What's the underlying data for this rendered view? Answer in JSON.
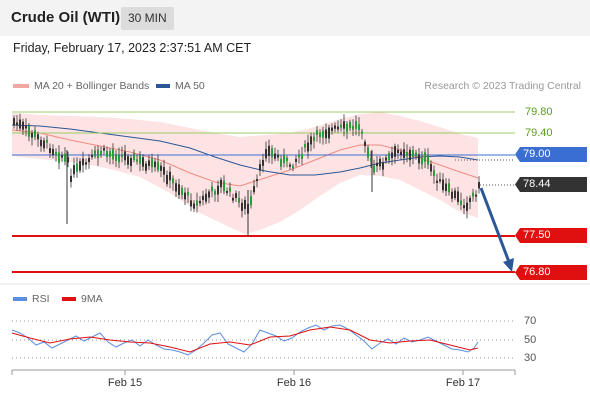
{
  "header": {
    "title": "Crude Oil (WTI)",
    "timeframe": "30 MIN"
  },
  "datetime": "Friday, February 17, 2023 2:37:51 AM CET",
  "legend": {
    "ma20_label": "MA 20 + Bollinger Bands",
    "ma20_color": "#f28b82",
    "ma50_label": "MA 50",
    "ma50_color": "#2b5797"
  },
  "credit": "Research © 2023 Trading Central",
  "levels": {
    "r2": "79.80",
    "r1": "79.40",
    "pivot": "79.00",
    "last": "78.44",
    "s1": "77.50",
    "s2": "76.80",
    "resistance_color": "#5a9e1a",
    "pivot_color": "#3a6fd1",
    "support_color": "#e01010",
    "last_color": "#333333"
  },
  "rsi_legend": {
    "rsi_label": "RSI",
    "rsi_color": "#5b8de0",
    "ma_label": "9MA",
    "ma_color": "#e01010"
  },
  "rsi_levels": {
    "upper": "70",
    "mid": "50",
    "lower": "30"
  },
  "x_labels": [
    "Feb 15",
    "Feb 16",
    "Feb 17"
  ]
}
